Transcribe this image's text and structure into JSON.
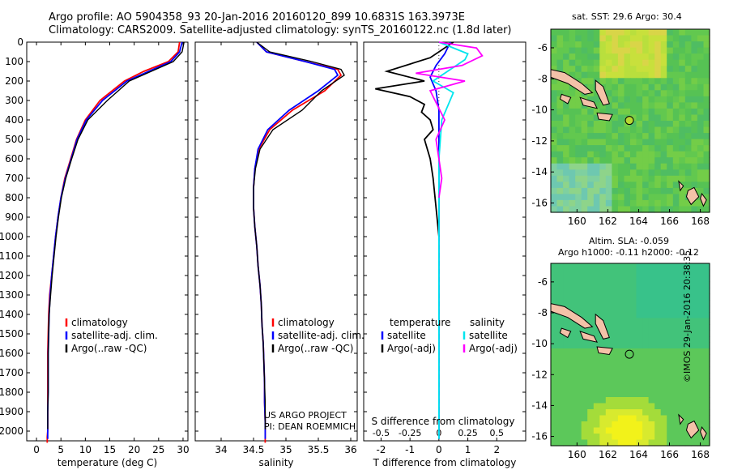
{
  "header": {
    "line1": "Argo profile: AO 5904358_93 20-Jan-2016 20160120_899 10.6831S 163.3973E",
    "line2": "Climatology: CARS2009. Satellite-adjusted climatology: synTS_20160122.nc (1.8d later)"
  },
  "map_titles": {
    "sst": "sat. SST: 29.6 Argo: 30.4",
    "sla": "Altim. SLA: -0.059",
    "h": "Argo h1000: -0.11 h2000: -0.12"
  },
  "credits": {
    "project": "US ARGO PROJECT",
    "pi": "PI: DEAN ROEMMICH",
    "imos": "©IMOS 29-Jan-2016 20:38:35"
  },
  "colors": {
    "climatology": "#ff0000",
    "satellite": "#0000ff",
    "argo": "#000000",
    "sal_satellite": "#00e5ee",
    "sal_argo": "#ff00ff"
  },
  "chart_data": [
    {
      "type": "line",
      "id": "temperature",
      "xlabel": "temperature (deg C)",
      "ylabel": "",
      "xlim": [
        -2,
        31
      ],
      "ylim": [
        2050,
        0
      ],
      "xticks": [
        "0",
        "5",
        "10",
        "15",
        "20",
        "25",
        "30"
      ],
      "yticks": [
        "0",
        "100",
        "200",
        "300",
        "400",
        "500",
        "600",
        "700",
        "800",
        "900",
        "1000",
        "1100",
        "1200",
        "1300",
        "1400",
        "1500",
        "1600",
        "1700",
        "1800",
        "1900",
        "2000"
      ],
      "legend": [
        "climatology",
        "satellite-adj. clim.",
        "Argo(..raw -QC)"
      ],
      "legend_position": "lower-center",
      "series": [
        {
          "name": "climatology",
          "color": "#ff0000",
          "x": [
            29.3,
            29.0,
            27.0,
            22.0,
            18.0,
            13.0,
            10.0,
            8.2,
            7.0,
            5.8,
            5.0,
            4.4,
            3.9,
            3.5,
            3.1,
            2.7,
            2.5,
            2.4,
            2.3,
            2.3,
            2.3,
            2.3,
            2.3,
            2.3,
            2.2,
            2.2,
            2.2
          ],
          "y": [
            0,
            50,
            100,
            150,
            200,
            300,
            400,
            500,
            600,
            700,
            800,
            900,
            1000,
            1100,
            1200,
            1300,
            1400,
            1500,
            1600,
            1700,
            1800,
            1900,
            1950,
            2000,
            2030,
            2050,
            2060
          ]
        },
        {
          "name": "satellite-adj. clim.",
          "color": "#0000ff",
          "x": [
            29.8,
            29.3,
            27.5,
            23.0,
            18.5,
            13.5,
            10.2,
            8.3,
            7.1,
            5.9,
            5.0,
            4.4,
            3.9,
            3.5,
            3.1,
            2.8,
            2.6,
            2.5,
            2.4,
            2.4,
            2.4,
            2.3,
            2.3,
            2.3
          ],
          "y": [
            0,
            50,
            100,
            150,
            200,
            300,
            400,
            500,
            600,
            700,
            800,
            900,
            1000,
            1100,
            1200,
            1300,
            1400,
            1500,
            1600,
            1700,
            1800,
            1900,
            2000,
            2040
          ]
        },
        {
          "name": "Argo(..raw -QC)",
          "color": "#000000",
          "x": [
            30.2,
            29.8,
            28.0,
            23.5,
            19.0,
            14.5,
            10.5,
            8.5,
            7.2,
            6.0,
            5.1,
            4.5,
            4.0,
            3.6,
            3.2,
            2.9,
            2.6,
            2.5,
            2.4,
            2.4,
            2.4,
            2.3,
            2.3
          ],
          "y": [
            0,
            50,
            100,
            150,
            200,
            300,
            400,
            500,
            600,
            700,
            800,
            900,
            1000,
            1100,
            1200,
            1300,
            1400,
            1500,
            1600,
            1700,
            1800,
            1900,
            1990
          ]
        }
      ]
    },
    {
      "type": "line",
      "id": "salinity",
      "xlabel": "salinity",
      "xlim": [
        33.6,
        36.1
      ],
      "ylim": [
        2050,
        0
      ],
      "xticks": [
        "34",
        "34.5",
        "35",
        "35.5",
        "36"
      ],
      "legend": [
        "climatology",
        "satellite-adj. clim.",
        "Argo(..raw -QC)"
      ],
      "legend_position": "lower-center",
      "series": [
        {
          "name": "climatology",
          "color": "#ff0000",
          "x": [
            34.55,
            34.7,
            35.3,
            35.8,
            35.85,
            35.6,
            35.1,
            34.75,
            34.58,
            34.52,
            34.5,
            34.5,
            34.52,
            34.55,
            34.57,
            34.6,
            34.62,
            34.63,
            34.65,
            34.66,
            34.67,
            34.67,
            34.68,
            34.68,
            34.68,
            34.68,
            34.68
          ],
          "y": [
            0,
            50,
            100,
            140,
            170,
            250,
            350,
            450,
            550,
            650,
            750,
            850,
            950,
            1050,
            1150,
            1250,
            1350,
            1450,
            1550,
            1650,
            1750,
            1850,
            1950,
            2000,
            2030,
            2050,
            2060
          ]
        },
        {
          "name": "satellite-adj. clim.",
          "color": "#0000ff",
          "x": [
            34.55,
            34.7,
            35.3,
            35.75,
            35.8,
            35.5,
            35.05,
            34.72,
            34.57,
            34.52,
            34.5,
            34.5,
            34.52,
            34.55,
            34.57,
            34.6,
            34.62,
            34.63,
            34.65,
            34.66,
            34.67,
            34.67,
            34.68,
            34.68
          ],
          "y": [
            0,
            50,
            100,
            140,
            170,
            250,
            350,
            450,
            550,
            650,
            750,
            850,
            950,
            1050,
            1150,
            1250,
            1350,
            1450,
            1550,
            1650,
            1750,
            1850,
            1950,
            2040
          ]
        },
        {
          "name": "Argo(..raw -QC)",
          "color": "#000000",
          "x": [
            34.55,
            34.75,
            35.4,
            35.85,
            35.9,
            35.55,
            35.25,
            34.8,
            34.6,
            34.53,
            34.5,
            34.5,
            34.52,
            34.55,
            34.57,
            34.6,
            34.62,
            34.63,
            34.65,
            34.66,
            34.67,
            34.68,
            34.68
          ],
          "y": [
            0,
            50,
            100,
            140,
            170,
            250,
            350,
            450,
            550,
            650,
            750,
            850,
            950,
            1050,
            1150,
            1250,
            1350,
            1450,
            1550,
            1650,
            1750,
            1850,
            1990
          ]
        }
      ]
    },
    {
      "type": "line",
      "id": "differences",
      "xlabel": "T difference from climatology",
      "xlabel_top": "S difference from climatology",
      "xlim": [
        -2.6,
        3.0
      ],
      "ylim": [
        2050,
        0
      ],
      "xticks": [
        "-2",
        "-1",
        "0",
        "1",
        "2"
      ],
      "xticks_top": [
        "-0.5",
        "-0.25",
        "0",
        "0.25",
        "0.5"
      ],
      "legend_temperature": [
        "temperature",
        "satellite",
        "Argo(-adj)"
      ],
      "legend_salinity": [
        "salinity",
        "satellite",
        "Argo(-adj)"
      ],
      "legend_position": "lower-center",
      "series": [
        {
          "name": "satellite",
          "group": "temperature",
          "color": "#0000ff",
          "x": [
            0.4,
            0.2,
            -0.1,
            -0.3,
            -0.1,
            0.0,
            0.0,
            0.0,
            0.0,
            0.0
          ],
          "y": [
            0,
            60,
            120,
            180,
            250,
            350,
            500,
            800,
            1500,
            2040
          ]
        },
        {
          "name": "Argo(-adj)",
          "group": "temperature",
          "color": "#000000",
          "x": [
            0.5,
            -0.3,
            -1.8,
            -0.5,
            -2.2,
            -1.0,
            -0.5,
            -0.6,
            -0.3,
            -0.2,
            -0.5,
            -0.3,
            -0.2,
            -0.1,
            0.0
          ],
          "y": [
            0,
            80,
            150,
            200,
            240,
            280,
            320,
            360,
            400,
            450,
            500,
            600,
            700,
            850,
            1000
          ]
        },
        {
          "name": "satellite",
          "group": "salinity",
          "color": "#00e5ee",
          "x": [
            0.0,
            1.0,
            0.9,
            -0.2,
            0.5,
            0.1,
            0.0,
            0.0,
            0.0
          ],
          "y": [
            0,
            60,
            90,
            200,
            260,
            400,
            600,
            1200,
            2040
          ]
        },
        {
          "name": "Argo(-adj)",
          "group": "salinity",
          "color": "#ff00ff",
          "x": [
            0.0,
            1.3,
            1.5,
            0.8,
            -0.8,
            0.9,
            -0.3,
            0.2,
            -0.1,
            0.1,
            0.0
          ],
          "y": [
            0,
            30,
            70,
            120,
            160,
            200,
            250,
            400,
            500,
            700,
            800
          ]
        }
      ]
    },
    {
      "type": "heatmap",
      "id": "sst-map",
      "title": "sat. SST: 29.6 Argo: 30.4",
      "xlim": [
        158.3,
        168.6
      ],
      "ylim": [
        -16.6,
        -4.8
      ],
      "xticks": [
        "160",
        "162",
        "164",
        "166",
        "168"
      ],
      "yticks": [
        "-6",
        "-8",
        "-10",
        "-12",
        "-14",
        "-16"
      ],
      "float_position": [
        163.4,
        -10.68
      ]
    },
    {
      "type": "heatmap",
      "id": "sla-map",
      "title": "Altim. SLA: -0.059",
      "subtitle": "Argo h1000: -0.11 h2000: -0.12",
      "xlim": [
        158.3,
        168.6
      ],
      "ylim": [
        -16.6,
        -4.8
      ],
      "xticks": [
        "160",
        "162",
        "164",
        "166",
        "168"
      ],
      "yticks": [
        "-6",
        "-8",
        "-10",
        "-12",
        "-14",
        "-16"
      ],
      "float_position": [
        163.4,
        -10.68
      ]
    }
  ]
}
